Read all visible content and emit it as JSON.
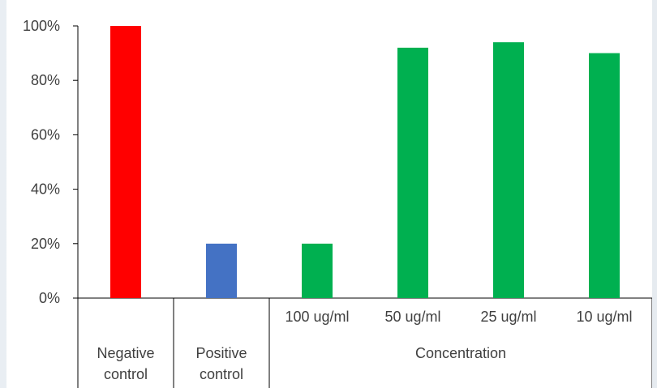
{
  "chart_data": {
    "type": "bar",
    "title": "",
    "xlabel": "",
    "ylabel": "",
    "ylim": [
      0,
      100
    ],
    "y_ticks": [
      "0%",
      "20%",
      "40%",
      "60%",
      "80%",
      "100%"
    ],
    "y_tick_values": [
      0,
      20,
      40,
      60,
      80,
      100
    ],
    "grid": false,
    "legend": "none",
    "categories": [
      "Negative control",
      "Positive control",
      "100 ug/ml",
      "50 ug/ml",
      "25 ug/ml",
      "10 ug/ml"
    ],
    "values": [
      100,
      20,
      20,
      92,
      94,
      90
    ],
    "bar_colors": [
      "#ff0000",
      "#4472c4",
      "#00b050",
      "#00b050",
      "#00b050",
      "#00b050"
    ],
    "category_groups": [
      {
        "label_lines": [
          "Negative",
          "control"
        ],
        "span": 1
      },
      {
        "label_lines": [
          "Positive",
          "control"
        ],
        "span": 1
      },
      {
        "label_lines": [
          "Concentration"
        ],
        "span": 4
      }
    ],
    "sub_labels": [
      "",
      "",
      "100 ug/ml",
      "50 ug/ml",
      "25 ug/ml",
      "10 ug/ml"
    ]
  }
}
